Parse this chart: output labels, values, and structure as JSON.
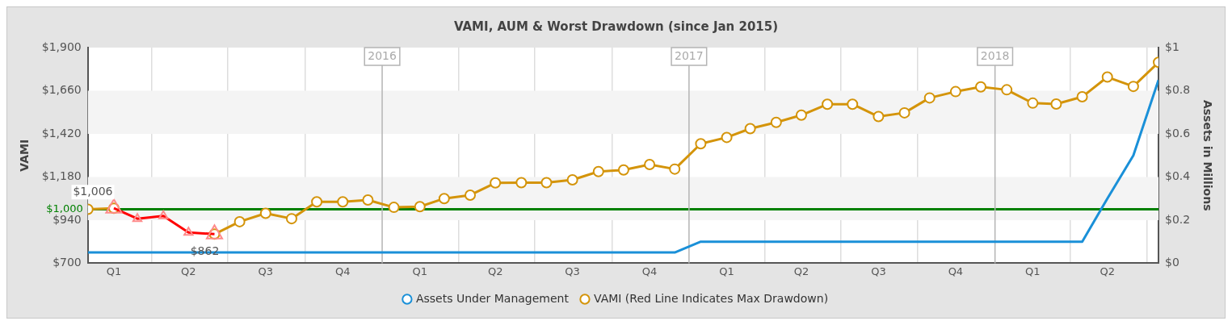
{
  "chart_data": {
    "type": "line",
    "title": "VAMI, AUM & Worst Drawdown (since Jan 2015)",
    "ylabel": "VAMI",
    "y2label": "Assets in Millions",
    "x": [
      "2015-01-15",
      "2015-02-15",
      "2015-03-15",
      "2015-04-15",
      "2015-05-15",
      "2015-06-15",
      "2015-07-15",
      "2015-08-15",
      "2015-09-15",
      "2015-10-15",
      "2015-11-15",
      "2015-12-15",
      "2016-01-15",
      "2016-02-15",
      "2016-03-15",
      "2016-04-15",
      "2016-05-15",
      "2016-06-15",
      "2016-07-15",
      "2016-08-15",
      "2016-09-15",
      "2016-10-15",
      "2016-11-15",
      "2016-12-15",
      "2017-01-15",
      "2017-02-15",
      "2017-03-15",
      "2017-04-15",
      "2017-05-15",
      "2017-06-15",
      "2017-07-15",
      "2017-08-15",
      "2017-09-15",
      "2017-10-15",
      "2017-11-15",
      "2017-12-15",
      "2018-01-15",
      "2018-02-15",
      "2018-03-15",
      "2018-04-15",
      "2018-05-15",
      "2018-06-15",
      "2018-07-15"
    ],
    "series": [
      {
        "name": "Assets Under Management",
        "color": "#1a90d8",
        "axis": "y2",
        "marker": "none",
        "values": [
          0.05,
          0.05,
          0.05,
          0.05,
          0.05,
          0.05,
          0.05,
          0.05,
          0.05,
          0.05,
          0.05,
          0.05,
          0.05,
          0.05,
          0.05,
          0.05,
          0.05,
          0.05,
          0.05,
          0.05,
          0.05,
          0.05,
          0.05,
          0.05,
          0.1,
          0.1,
          0.1,
          0.1,
          0.1,
          0.1,
          0.1,
          0.1,
          0.1,
          0.1,
          0.1,
          0.1,
          0.1,
          0.1,
          0.1,
          0.1,
          0.3,
          0.5,
          0.85
        ]
      },
      {
        "name": "VAMI (Red Line Indicates Max Drawdown)",
        "color": "#d4940a",
        "marker": "circle",
        "values": [
          1000,
          1006,
          null,
          null,
          null,
          862,
          931,
          978,
          948,
          1042,
          1042,
          1052,
          1011,
          1015,
          1060,
          1079,
          1147,
          1148,
          1148,
          1164,
          1210,
          1219,
          1249,
          1224,
          1365,
          1400,
          1449,
          1484,
          1524,
          1585,
          1585,
          1516,
          1537,
          1620,
          1655,
          1681,
          1665,
          1591,
          1586,
          1626,
          1736,
          1684,
          1818
        ]
      },
      {
        "color": "#ff0000",
        "marker": "triangle",
        "values": [
          null,
          1006,
          948,
          963,
          871,
          862,
          null,
          null,
          null,
          null,
          null,
          null,
          null,
          null,
          null,
          null,
          null,
          null,
          null,
          null,
          null,
          null,
          null,
          null,
          null,
          null,
          null,
          null,
          null,
          null,
          null,
          null,
          null,
          null,
          null,
          null,
          null,
          null,
          null,
          null,
          null,
          null,
          null
        ]
      }
    ],
    "xlim": [
      "2015-01-15",
      "2018-07-15"
    ],
    "xticks": [
      {
        "value": "2015-02-15",
        "label": "Q1"
      },
      {
        "value": "2015-04-01",
        "label": null
      },
      {
        "value": "2015-05-15",
        "label": "Q2"
      },
      {
        "value": "2015-07-01",
        "label": null
      },
      {
        "value": "2015-08-15",
        "label": "Q3"
      },
      {
        "value": "2015-10-01",
        "label": null
      },
      {
        "value": "2015-11-15",
        "label": "Q4"
      },
      {
        "value": "2016-02-15",
        "label": "Q1"
      },
      {
        "value": "2016-04-01",
        "label": null
      },
      {
        "value": "2016-05-15",
        "label": "Q2"
      },
      {
        "value": "2016-07-01",
        "label": null
      },
      {
        "value": "2016-08-15",
        "label": "Q3"
      },
      {
        "value": "2016-10-01",
        "label": null
      },
      {
        "value": "2016-11-15",
        "label": "Q4"
      },
      {
        "value": "2017-02-15",
        "label": "Q1"
      },
      {
        "value": "2017-04-01",
        "label": null
      },
      {
        "value": "2017-05-15",
        "label": "Q2"
      },
      {
        "value": "2017-07-01",
        "label": null
      },
      {
        "value": "2017-08-15",
        "label": "Q3"
      },
      {
        "value": "2017-10-01",
        "label": null
      },
      {
        "value": "2017-11-15",
        "label": "Q4"
      },
      {
        "value": "2018-02-15",
        "label": "Q1"
      },
      {
        "value": "2018-04-01",
        "label": null
      },
      {
        "value": "2018-05-15",
        "label": "Q2"
      },
      {
        "value": "2018-07-01",
        "label": null
      }
    ],
    "ylim": [
      700,
      1900
    ],
    "yticks": [
      {
        "value": 700,
        "label": "$700"
      },
      {
        "value": 940,
        "label": "$940"
      },
      {
        "value": 1180,
        "label": "$1,180"
      },
      {
        "value": 1420,
        "label": "$1,420"
      },
      {
        "value": 1660,
        "label": "$1,660"
      },
      {
        "value": 1900,
        "label": "$1,900"
      }
    ],
    "y2lim": [
      0,
      1
    ],
    "y2ticks": [
      {
        "value": 0,
        "label": "$0"
      },
      {
        "value": 0.2,
        "label": "$0.2"
      },
      {
        "value": 0.4,
        "label": "$0.4"
      },
      {
        "value": 0.6,
        "label": "$0.6"
      },
      {
        "value": 0.8,
        "label": "$0.8"
      },
      {
        "value": 1,
        "label": "$1"
      }
    ],
    "ref_lines": [
      {
        "axis": "y",
        "value": 1000,
        "label": "$1,000",
        "color": "#008000"
      },
      {
        "axis": "x",
        "value": "2016-01-01",
        "label": "2016",
        "color": "#b4b4b4"
      },
      {
        "axis": "x",
        "value": "2017-01-01",
        "label": "2017",
        "color": "#b4b4b4"
      },
      {
        "axis": "x",
        "value": "2018-01-01",
        "label": "2018",
        "color": "#b4b4b4"
      }
    ],
    "bands": [
      {
        "axis": "y",
        "from": 940,
        "to": 1180,
        "color": "#f4f4f4"
      },
      {
        "axis": "y",
        "from": 1420,
        "to": 1660,
        "color": "#f4f4f4"
      }
    ],
    "annotations": [
      {
        "text": "$1,006",
        "x": "2015-02-15",
        "y": 1006
      },
      {
        "text": "$862",
        "x": "2015-06-15",
        "y": 862
      }
    ],
    "grid": "x",
    "legend": "bottom"
  }
}
